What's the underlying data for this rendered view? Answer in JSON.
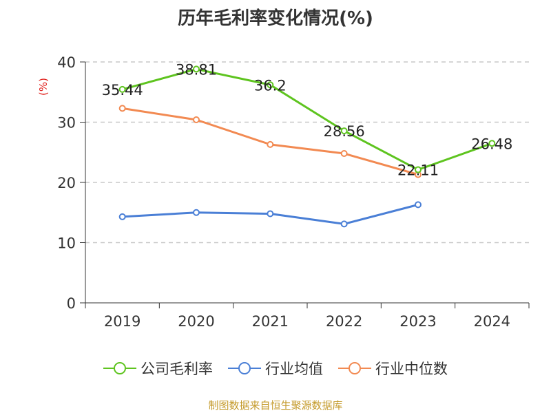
{
  "chart_data": {
    "type": "line",
    "title": "历年毛利率变化情况(%)",
    "ylabel": "(%)",
    "categories": [
      "2019",
      "2020",
      "2021",
      "2022",
      "2023",
      "2024"
    ],
    "ylim": [
      0,
      40
    ],
    "yticks": [
      0,
      10,
      20,
      30,
      40
    ],
    "grid": true,
    "legend_position": "bottom",
    "series": [
      {
        "name": "公司毛利率",
        "color": "#5ec41f",
        "values": [
          35.44,
          38.81,
          36.2,
          28.56,
          22.11,
          26.48
        ],
        "labels": [
          "35.44",
          "38.81",
          "36.2",
          "28.56",
          "22.11",
          "26.48"
        ]
      },
      {
        "name": "行业均值",
        "color": "#4a7fd6",
        "values": [
          14.3,
          15.0,
          14.8,
          13.1,
          16.3,
          null
        ]
      },
      {
        "name": "行业中位数",
        "color": "#f28a52",
        "values": [
          32.3,
          30.4,
          26.3,
          24.8,
          21.3,
          null
        ]
      }
    ]
  },
  "source": "制图数据来自恒生聚源数据库"
}
